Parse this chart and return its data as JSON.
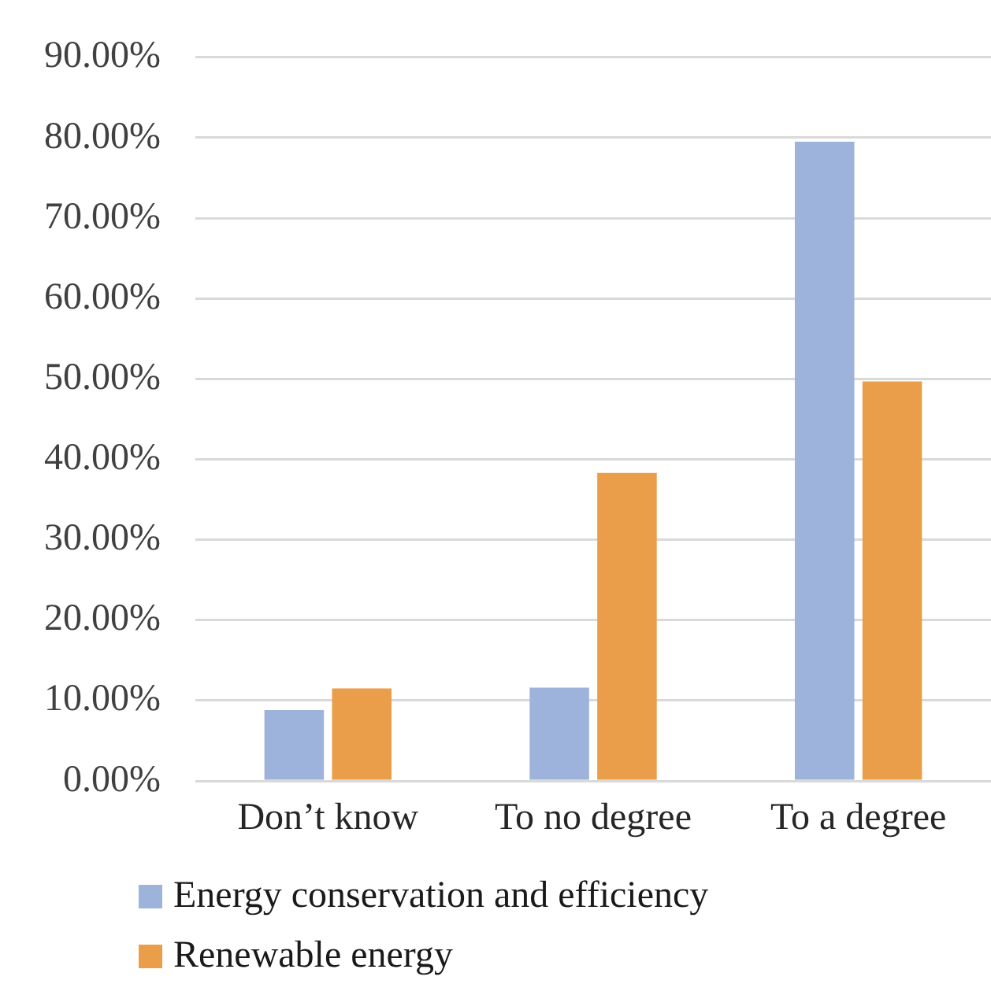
{
  "chart_data": {
    "type": "bar",
    "categories": [
      "Don’t know",
      "To no degree",
      "To a degree"
    ],
    "series": [
      {
        "name": "Energy conservation and efficiency",
        "color": "#9db3dc",
        "values": [
          8.8,
          11.6,
          79.5
        ]
      },
      {
        "name": "Renewable energy",
        "color": "#eb9e4a",
        "values": [
          11.5,
          38.3,
          49.7
        ]
      }
    ],
    "ylim": [
      0,
      90
    ],
    "yticks": [
      {
        "value": 0,
        "label": "0.00%"
      },
      {
        "value": 10,
        "label": "10.00%"
      },
      {
        "value": 20,
        "label": "20.00%"
      },
      {
        "value": 30,
        "label": "30.00%"
      },
      {
        "value": 40,
        "label": "40.00%"
      },
      {
        "value": 50,
        "label": "50.00%"
      },
      {
        "value": 60,
        "label": "60.00%"
      },
      {
        "value": 70,
        "label": "70.00%"
      },
      {
        "value": 80,
        "label": "80.00%"
      },
      {
        "value": 90,
        "label": "90.00%"
      }
    ],
    "grid": "y",
    "legend": "bottom left"
  }
}
